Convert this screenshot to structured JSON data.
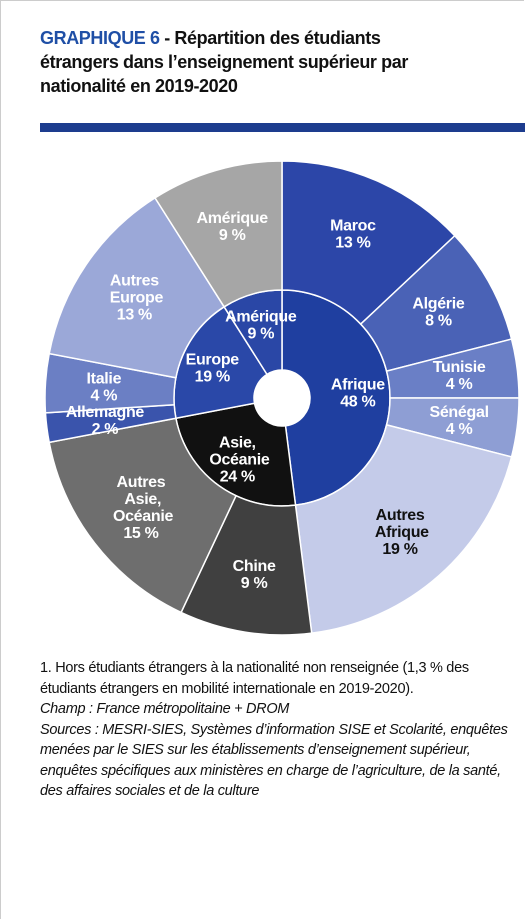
{
  "chart_data": {
    "type": "sunburst",
    "label": "GRAPHIQUE 6",
    "title": "- Répartition des étudiants étrangers dans l’enseignement supérieur par nationalité en 2019-2020",
    "rings": [
      {
        "categories": [
          "Afrique",
          "Asie, Océanie",
          "Europe",
          "Amérique"
        ],
        "values": [
          48,
          24,
          19,
          9
        ],
        "value_labels": [
          "48 %",
          "24 %",
          "19 %",
          "9 %"
        ],
        "colors": [
          "#1f3fa0",
          "#111111",
          "#2a48a8",
          "#2a47a6"
        ]
      },
      {
        "categories": [
          "Maroc",
          "Algérie",
          "Tunisie",
          "Sénégal",
          "Autres Afrique",
          "Chine",
          "Autres Asie, Océanie",
          "Allemagne",
          "Italie",
          "Autres Europe",
          "Amérique"
        ],
        "values": [
          13,
          8,
          4,
          4,
          19,
          9,
          15,
          2,
          4,
          13,
          9
        ],
        "value_labels": [
          "13 %",
          "8 %",
          "4 %",
          "4 %",
          "19 %",
          "9 %",
          "15 %",
          "2 %",
          "4 %",
          "13 %",
          "9 %"
        ],
        "colors": [
          "#2c46a8",
          "#4a62b6",
          "#6a7fc6",
          "#8e9ed4",
          "#c4cbe9",
          "#404040",
          "#6e6e6e",
          "#3a54ac",
          "#6b7fc4",
          "#9ba8d8",
          "#a6a6a6"
        ]
      }
    ]
  },
  "notes": {
    "footnote": "1. Hors étudiants étrangers à la nationalité non renseignée (1,3 % des étudiants étrangers en mobilité internationale en 2019-2020).",
    "champ": "Champ : France métropolitaine + DROM",
    "sources": "Sources : MESRI-SIES, Systèmes d’information SISE et Scolarité, enquêtes menées par le SIES sur les établissements d’enseignement supérieur, enquêtes spécifiques aux ministères en charge de l’agriculture, de la santé, des affaires sociales et de la culture"
  }
}
